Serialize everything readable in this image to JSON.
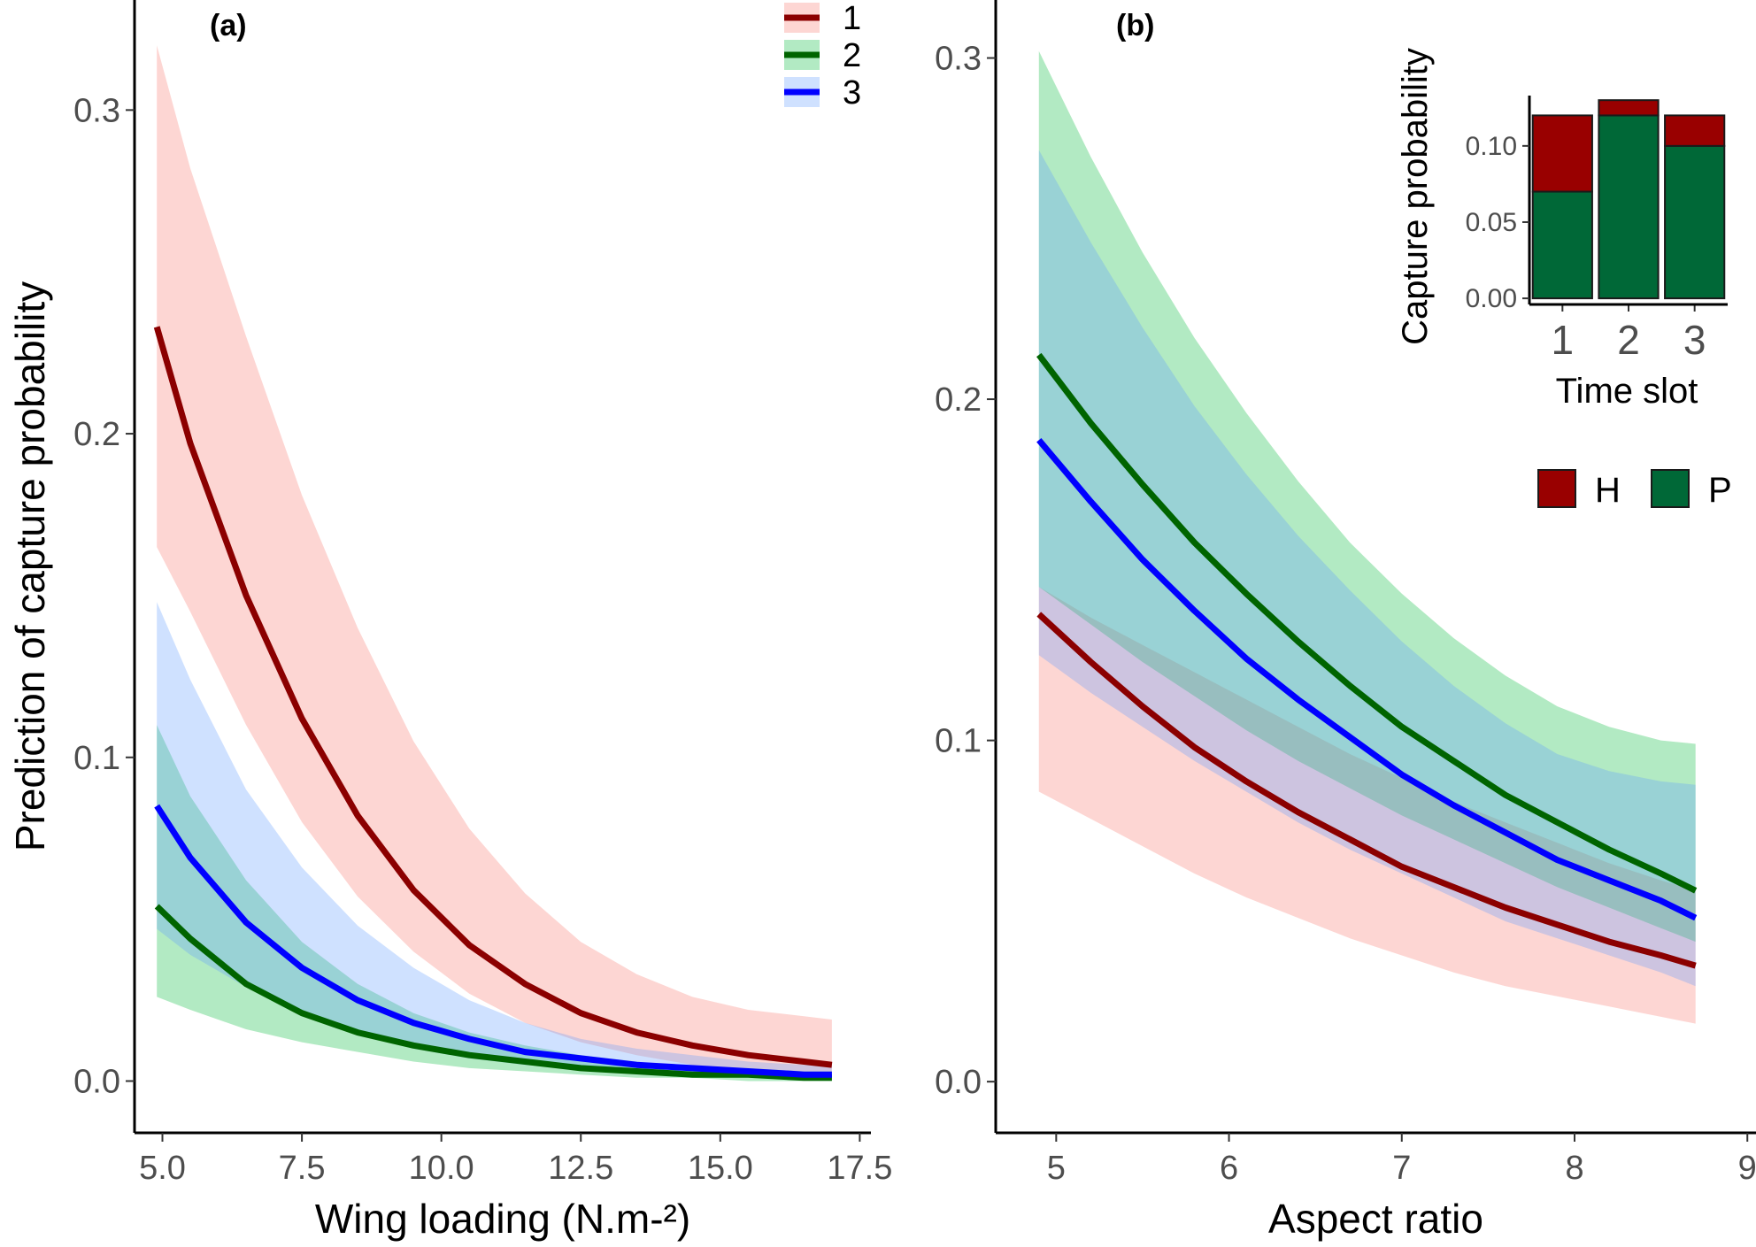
{
  "chart_data": [
    {
      "panel_label": "(a)",
      "type": "line",
      "xlabel": "Wing loading (N.m-²)",
      "ylabel": "Prediction of capture probability",
      "xlim": [
        4.5,
        17.7
      ],
      "ylim": [
        -0.016,
        0.334
      ],
      "xticks": [
        5.0,
        7.5,
        10.0,
        12.5,
        15.0,
        17.5
      ],
      "xtick_labels": [
        "5.0",
        "7.5",
        "10.0",
        "12.5",
        "15.0",
        "17.5"
      ],
      "yticks": [
        0.0,
        0.1,
        0.2,
        0.3
      ],
      "ytick_labels": [
        "0.0",
        "0.1",
        "0.2",
        "0.3"
      ],
      "x": [
        4.9,
        5.5,
        6.5,
        7.5,
        8.5,
        9.5,
        10.5,
        11.5,
        12.5,
        13.5,
        14.5,
        15.5,
        16.5,
        17.0
      ],
      "legend": {
        "position": "top-right",
        "entries": [
          "1",
          "2",
          "3"
        ]
      },
      "series": [
        {
          "name": "1",
          "line_color": "#8b0000",
          "band_color": "#f8766d",
          "values": [
            0.233,
            0.197,
            0.15,
            0.112,
            0.082,
            0.059,
            0.042,
            0.03,
            0.021,
            0.015,
            0.011,
            0.008,
            0.006,
            0.005
          ],
          "lower": [
            0.165,
            0.145,
            0.11,
            0.08,
            0.057,
            0.04,
            0.027,
            0.018,
            0.012,
            0.008,
            0.005,
            0.003,
            0.002,
            0.002
          ],
          "upper": [
            0.32,
            0.282,
            0.23,
            0.181,
            0.14,
            0.105,
            0.078,
            0.058,
            0.043,
            0.033,
            0.026,
            0.022,
            0.02,
            0.019
          ]
        },
        {
          "name": "2",
          "line_color": "#006400",
          "band_color": "#00ba38",
          "values": [
            0.054,
            0.044,
            0.03,
            0.021,
            0.015,
            0.011,
            0.008,
            0.006,
            0.004,
            0.003,
            0.002,
            0.002,
            0.001,
            0.001
          ],
          "lower": [
            0.026,
            0.022,
            0.016,
            0.012,
            0.009,
            0.006,
            0.004,
            0.003,
            0.002,
            0.001,
            0.001,
            0.0,
            0.0,
            0.0
          ],
          "upper": [
            0.11,
            0.088,
            0.062,
            0.043,
            0.03,
            0.021,
            0.015,
            0.011,
            0.008,
            0.006,
            0.004,
            0.004,
            0.003,
            0.003
          ]
        },
        {
          "name": "3",
          "line_color": "#0000ff",
          "band_color": "#619cff",
          "values": [
            0.085,
            0.069,
            0.049,
            0.035,
            0.025,
            0.018,
            0.013,
            0.009,
            0.007,
            0.005,
            0.004,
            0.003,
            0.002,
            0.002
          ],
          "lower": [
            0.047,
            0.039,
            0.029,
            0.021,
            0.015,
            0.01,
            0.007,
            0.005,
            0.004,
            0.003,
            0.002,
            0.001,
            0.001,
            0.001
          ],
          "upper": [
            0.148,
            0.124,
            0.09,
            0.066,
            0.048,
            0.035,
            0.025,
            0.018,
            0.013,
            0.01,
            0.008,
            0.006,
            0.005,
            0.005
          ]
        }
      ]
    },
    {
      "panel_label": "(b)",
      "type": "line",
      "xlabel": "Aspect ratio",
      "ylabel": "",
      "xlim": [
        4.65,
        9.05
      ],
      "ylim": [
        -0.015,
        0.317
      ],
      "xticks": [
        5,
        6,
        7,
        8,
        9
      ],
      "xtick_labels": [
        "5",
        "6",
        "7",
        "8",
        "9"
      ],
      "yticks": [
        0.0,
        0.1,
        0.2,
        0.3
      ],
      "ytick_labels": [
        "0.0",
        "0.1",
        "0.2",
        "0.3"
      ],
      "x": [
        4.9,
        5.2,
        5.5,
        5.8,
        6.1,
        6.4,
        6.7,
        7.0,
        7.3,
        7.6,
        7.9,
        8.2,
        8.5,
        8.7
      ],
      "series": [
        {
          "name": "1",
          "line_color": "#8b0000",
          "band_color": "#f8766d",
          "values": [
            0.137,
            0.123,
            0.11,
            0.098,
            0.088,
            0.079,
            0.071,
            0.063,
            0.057,
            0.051,
            0.046,
            0.041,
            0.037,
            0.034
          ],
          "lower": [
            0.085,
            0.077,
            0.069,
            0.061,
            0.054,
            0.048,
            0.042,
            0.037,
            0.032,
            0.028,
            0.025,
            0.022,
            0.019,
            0.017
          ],
          "upper": [
            0.145,
            0.136,
            0.128,
            0.12,
            0.112,
            0.104,
            0.096,
            0.089,
            0.082,
            0.076,
            0.07,
            0.064,
            0.059,
            0.056
          ]
        },
        {
          "name": "2",
          "line_color": "#006400",
          "band_color": "#00ba38",
          "values": [
            0.213,
            0.193,
            0.175,
            0.158,
            0.143,
            0.129,
            0.116,
            0.104,
            0.094,
            0.084,
            0.076,
            0.068,
            0.061,
            0.056
          ],
          "lower": [
            0.145,
            0.134,
            0.123,
            0.113,
            0.103,
            0.094,
            0.086,
            0.078,
            0.071,
            0.064,
            0.057,
            0.051,
            0.045,
            0.041
          ],
          "upper": [
            0.302,
            0.271,
            0.243,
            0.218,
            0.196,
            0.176,
            0.158,
            0.143,
            0.13,
            0.119,
            0.11,
            0.104,
            0.1,
            0.099
          ]
        },
        {
          "name": "3",
          "line_color": "#0000ff",
          "band_color": "#619cff",
          "values": [
            0.188,
            0.17,
            0.153,
            0.138,
            0.124,
            0.112,
            0.101,
            0.09,
            0.081,
            0.073,
            0.065,
            0.059,
            0.053,
            0.048
          ],
          "lower": [
            0.125,
            0.114,
            0.104,
            0.094,
            0.085,
            0.076,
            0.068,
            0.061,
            0.054,
            0.047,
            0.042,
            0.037,
            0.032,
            0.028
          ],
          "upper": [
            0.273,
            0.246,
            0.221,
            0.198,
            0.178,
            0.16,
            0.144,
            0.129,
            0.116,
            0.105,
            0.096,
            0.091,
            0.088,
            0.087
          ]
        }
      ]
    },
    {
      "panel_label": "inset",
      "type": "bar",
      "stacked": true,
      "xlabel": "Time slot",
      "ylabel": "Capture probability",
      "categories": [
        "1",
        "2",
        "3"
      ],
      "ylim": [
        -0.004,
        0.133
      ],
      "yticks": [
        0.0,
        0.05,
        0.1
      ],
      "ytick_labels": [
        "0.00",
        "0.05",
        "0.10"
      ],
      "series": [
        {
          "name": "P",
          "color": "#006837",
          "values": [
            0.07,
            0.12,
            0.1
          ]
        },
        {
          "name": "H",
          "color": "#990000",
          "values": [
            0.05,
            0.01,
            0.02
          ]
        }
      ],
      "legend": {
        "position": "bottom",
        "entries": [
          "H",
          "P"
        ]
      }
    }
  ]
}
